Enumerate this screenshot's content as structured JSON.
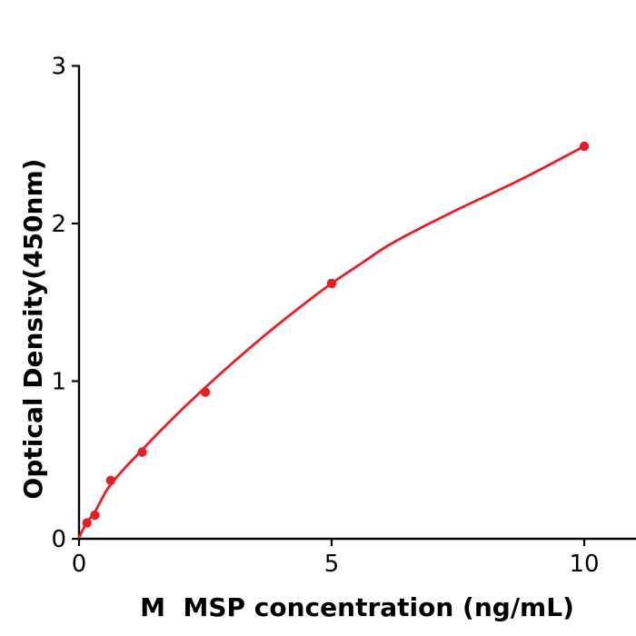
{
  "chart_data": {
    "type": "scatter",
    "title": "",
    "xlabel": "M  MSP concentration (ng/mL)",
    "ylabel": "Optical Density(450nm)",
    "x": [
      0.156,
      0.3125,
      0.625,
      1.25,
      2.5,
      5,
      10
    ],
    "values": [
      0.1,
      0.15,
      0.37,
      0.55,
      0.93,
      1.62,
      2.49
    ],
    "fit_curve": [
      [
        0,
        0.01
      ],
      [
        0.156,
        0.105
      ],
      [
        0.3125,
        0.17
      ],
      [
        0.625,
        0.345
      ],
      [
        1.25,
        0.565
      ],
      [
        1.875,
        0.77
      ],
      [
        2.5,
        0.96
      ],
      [
        3.125,
        1.14
      ],
      [
        3.75,
        1.31
      ],
      [
        4.375,
        1.47
      ],
      [
        5,
        1.62
      ],
      [
        5.625,
        1.755
      ],
      [
        6.25,
        1.885
      ],
      [
        7.5,
        2.09
      ],
      [
        8.75,
        2.28
      ],
      [
        10,
        2.49
      ]
    ],
    "xlim": [
      0,
      10.5
    ],
    "ylim": [
      0,
      3
    ],
    "x_ticks": [
      0,
      5,
      10
    ],
    "y_ticks": [
      0,
      1,
      2,
      3
    ],
    "grid": false,
    "legend": "none",
    "colors": {
      "line": "#ed1c24",
      "marker": "#ed1c24",
      "axis": "#000000",
      "text": "#000000",
      "background": "#ffffff"
    }
  }
}
